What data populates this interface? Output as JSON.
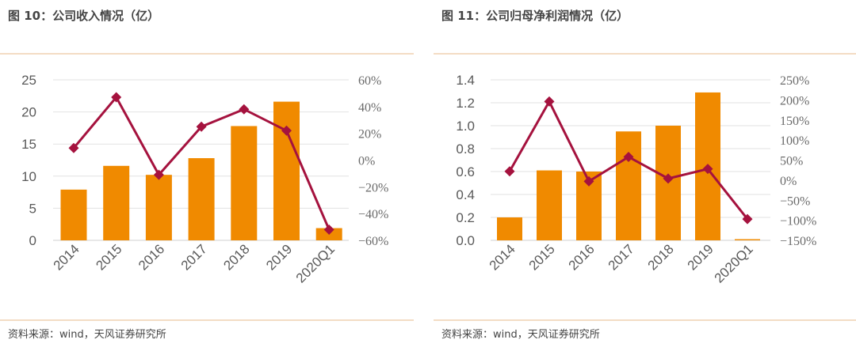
{
  "chart_data": [
    {
      "type": "bar+line",
      "title": "图 10：公司收入情况（亿）",
      "source": "资料来源：wind，天风证券研究所",
      "categories": [
        "2014",
        "2015",
        "2016",
        "2017",
        "2018",
        "2019",
        "2020Q1"
      ],
      "bar_values": [
        7.9,
        11.6,
        10.2,
        12.8,
        17.8,
        21.6,
        1.9
      ],
      "line_values_pct": [
        9,
        47,
        -11,
        25,
        38,
        22,
        -52
      ],
      "left_axis": {
        "ylim": [
          0,
          25
        ],
        "ticks": [
          "0",
          "5",
          "10",
          "15",
          "20",
          "25"
        ]
      },
      "right_axis": {
        "ylim": [
          -60,
          60
        ],
        "ticks": [
          "-60%",
          "-40%",
          "-20%",
          "0%",
          "20%",
          "40%",
          "60%"
        ]
      },
      "grid": true,
      "colors": {
        "bar": "#F08A00",
        "line": "#A5123E"
      }
    },
    {
      "type": "bar+line",
      "title": "图 11：公司归母净利润情况（亿）",
      "source": "资料来源：wind，天风证券研究所",
      "categories": [
        "2014",
        "2015",
        "2016",
        "2017",
        "2018",
        "2019",
        "2020Q1"
      ],
      "bar_values": [
        0.2,
        0.61,
        0.6,
        0.95,
        1.0,
        1.29,
        0.01
      ],
      "line_values_pct": [
        22,
        196,
        -3,
        58,
        4,
        28,
        -97
      ],
      "left_axis": {
        "ylim": [
          0,
          1.4
        ],
        "ticks": [
          "0.0",
          "0.2",
          "0.4",
          "0.6",
          "0.8",
          "1.0",
          "1.2",
          "1.4"
        ]
      },
      "right_axis": {
        "ylim": [
          -150,
          250
        ],
        "ticks": [
          "-150%",
          "-100%",
          "-50%",
          "0%",
          "50%",
          "100%",
          "150%",
          "200%",
          "250%"
        ]
      },
      "grid": true,
      "colors": {
        "bar": "#F08A00",
        "line": "#A5123E"
      }
    }
  ]
}
